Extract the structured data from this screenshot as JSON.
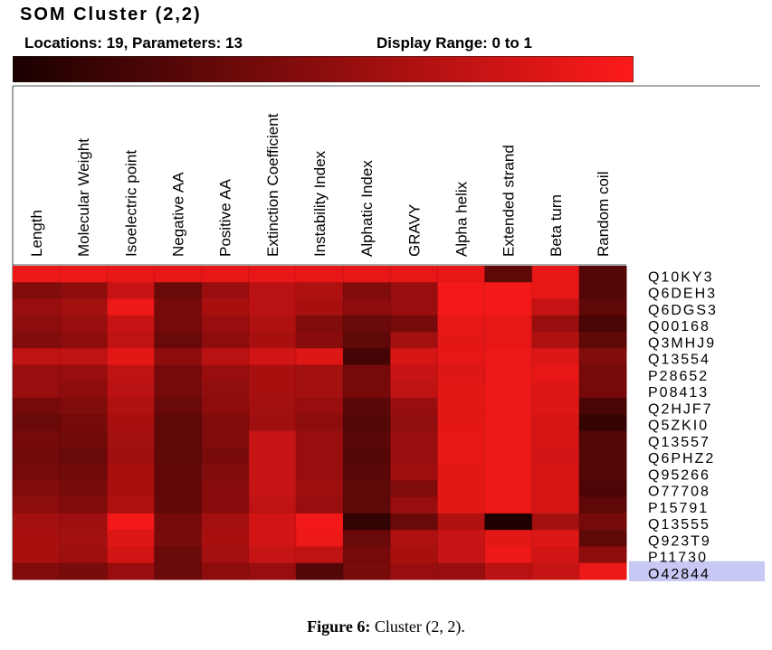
{
  "title": "SOM Cluster (2,2)",
  "info": {
    "locations_params": "Locations: 19, Parameters: 13",
    "display_range": "Display Range: 0   to 1"
  },
  "caption": {
    "label": "Figure 6:",
    "text": " Cluster (2, 2)."
  },
  "chart_data": {
    "type": "heatmap",
    "title": "SOM Cluster (2,2)",
    "value_range": [
      0,
      1
    ],
    "colormap": [
      "#1a0000",
      "#ff1a1a"
    ],
    "highlighted_row": "O42844",
    "columns": [
      "Length",
      "Molecular Weight",
      "Isoelectric point",
      "Negative AA",
      "Positive AA",
      "Extinction Coefficient",
      "Instability Index",
      "Alphatic Index",
      "GRAVY",
      "Alpha helix",
      "Extended strand",
      "Beta turn",
      "Random coil"
    ],
    "rows": [
      "Q10KY3",
      "Q6DEH3",
      "Q6DGS3",
      "Q00168",
      "Q3MHJ9",
      "Q13554",
      "P28652",
      "P08413",
      "Q2HJF7",
      "Q5ZKI0",
      "Q13557",
      "Q6PHZ2",
      "Q95266",
      "O77708",
      "P15791",
      "Q13555",
      "Q923T9",
      "P11730",
      "O42844"
    ],
    "values": [
      [
        0.92,
        0.92,
        0.9,
        0.9,
        0.9,
        0.9,
        0.9,
        0.9,
        0.9,
        0.9,
        0.3,
        0.9,
        0.25
      ],
      [
        0.45,
        0.5,
        0.75,
        0.35,
        0.55,
        0.7,
        0.65,
        0.45,
        0.55,
        0.95,
        0.95,
        0.9,
        0.25
      ],
      [
        0.55,
        0.6,
        0.92,
        0.4,
        0.62,
        0.7,
        0.62,
        0.5,
        0.55,
        0.95,
        0.95,
        0.75,
        0.3
      ],
      [
        0.5,
        0.55,
        0.75,
        0.4,
        0.55,
        0.65,
        0.45,
        0.35,
        0.4,
        0.9,
        0.9,
        0.55,
        0.2
      ],
      [
        0.45,
        0.5,
        0.72,
        0.35,
        0.5,
        0.62,
        0.48,
        0.3,
        0.6,
        0.88,
        0.9,
        0.65,
        0.3
      ],
      [
        0.72,
        0.72,
        0.88,
        0.5,
        0.7,
        0.8,
        0.85,
        0.18,
        0.82,
        0.9,
        0.92,
        0.85,
        0.45
      ],
      [
        0.55,
        0.55,
        0.72,
        0.4,
        0.55,
        0.62,
        0.6,
        0.4,
        0.75,
        0.85,
        0.92,
        0.9,
        0.4
      ],
      [
        0.55,
        0.5,
        0.7,
        0.4,
        0.52,
        0.62,
        0.6,
        0.4,
        0.72,
        0.88,
        0.92,
        0.85,
        0.4
      ],
      [
        0.4,
        0.45,
        0.65,
        0.35,
        0.5,
        0.6,
        0.55,
        0.28,
        0.55,
        0.88,
        0.92,
        0.85,
        0.2
      ],
      [
        0.35,
        0.4,
        0.62,
        0.3,
        0.45,
        0.58,
        0.5,
        0.25,
        0.52,
        0.88,
        0.92,
        0.82,
        0.12
      ],
      [
        0.4,
        0.38,
        0.6,
        0.3,
        0.45,
        0.75,
        0.55,
        0.28,
        0.55,
        0.9,
        0.92,
        0.82,
        0.25
      ],
      [
        0.38,
        0.35,
        0.58,
        0.3,
        0.42,
        0.75,
        0.55,
        0.25,
        0.55,
        0.9,
        0.92,
        0.8,
        0.25
      ],
      [
        0.4,
        0.38,
        0.62,
        0.32,
        0.45,
        0.75,
        0.55,
        0.28,
        0.58,
        0.88,
        0.92,
        0.82,
        0.25
      ],
      [
        0.45,
        0.42,
        0.62,
        0.32,
        0.48,
        0.75,
        0.58,
        0.3,
        0.45,
        0.88,
        0.92,
        0.82,
        0.22
      ],
      [
        0.5,
        0.45,
        0.65,
        0.32,
        0.48,
        0.72,
        0.55,
        0.3,
        0.55,
        0.88,
        0.92,
        0.82,
        0.3
      ],
      [
        0.6,
        0.58,
        0.95,
        0.4,
        0.6,
        0.8,
        0.95,
        0.1,
        0.35,
        0.65,
        0.02,
        0.6,
        0.4
      ],
      [
        0.62,
        0.6,
        0.85,
        0.42,
        0.62,
        0.8,
        0.92,
        0.35,
        0.65,
        0.75,
        0.88,
        0.85,
        0.3
      ],
      [
        0.62,
        0.58,
        0.8,
        0.35,
        0.6,
        0.75,
        0.72,
        0.4,
        0.62,
        0.75,
        0.92,
        0.8,
        0.5
      ],
      [
        0.45,
        0.42,
        0.55,
        0.35,
        0.5,
        0.55,
        0.25,
        0.42,
        0.55,
        0.55,
        0.7,
        0.75,
        0.92
      ]
    ]
  }
}
